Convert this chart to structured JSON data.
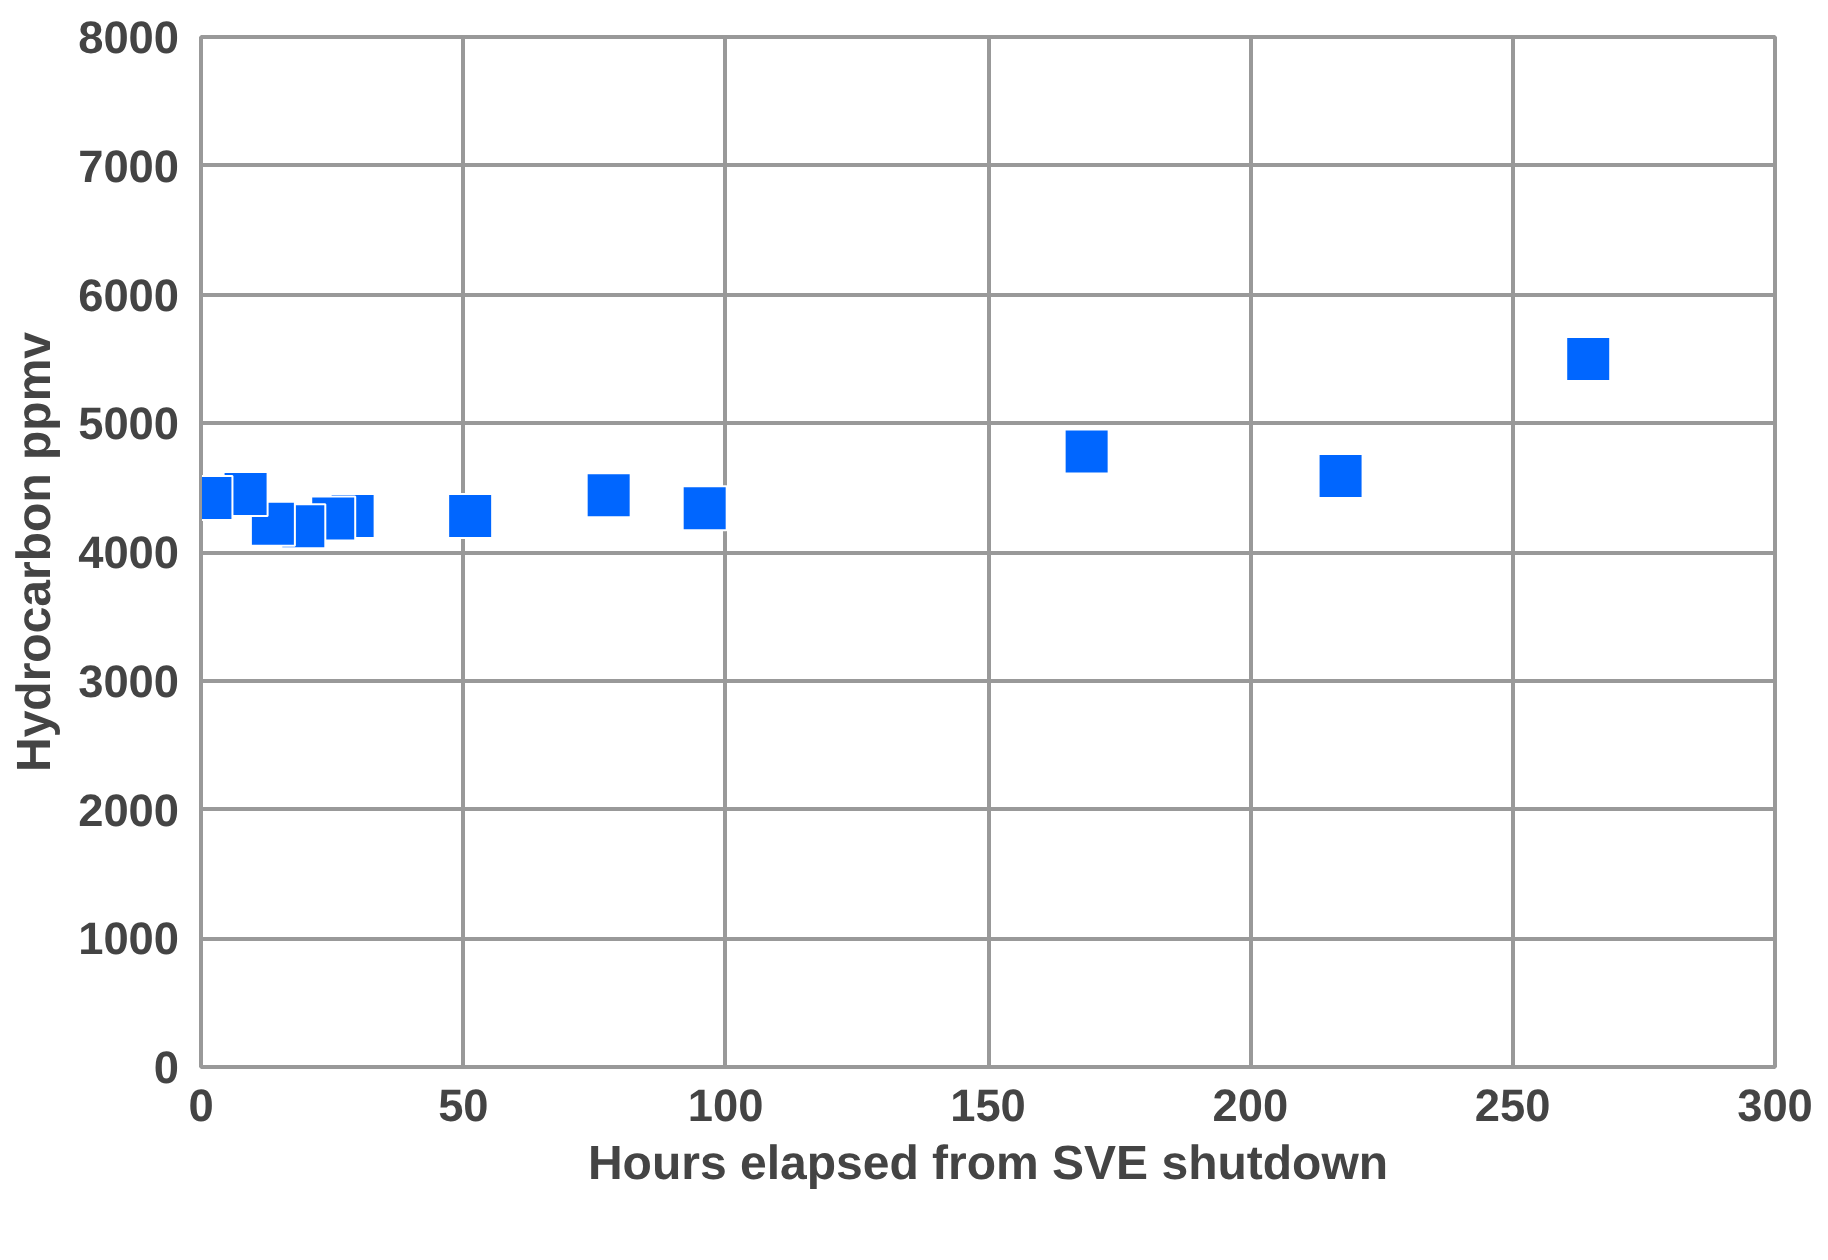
{
  "chart_data": {
    "type": "scatter",
    "xlabel": "Hours elapsed from SVE shutdown",
    "ylabel": "Hydrocarbon ppmv",
    "x": [
      1.8,
      8.5,
      13.7,
      19.5,
      25.2,
      28.9,
      51.3,
      77.7,
      96,
      168.8,
      217.2,
      264.4
    ],
    "series": [
      {
        "color": "#0066ff",
        "values": [
          4420,
          4450,
          4220,
          4200,
          4260,
          4280,
          4280,
          4440,
          4340,
          4780,
          4590,
          5500
        ]
      }
    ],
    "xlim": [
      0,
      300
    ],
    "xticks": [
      0,
      50,
      100,
      150,
      200,
      250,
      300
    ],
    "ylim": [
      0,
      8000
    ],
    "yticks": [
      0,
      1000,
      2000,
      3000,
      4000,
      5000,
      6000,
      7000,
      8000
    ],
    "grid": true,
    "marker": "square"
  }
}
